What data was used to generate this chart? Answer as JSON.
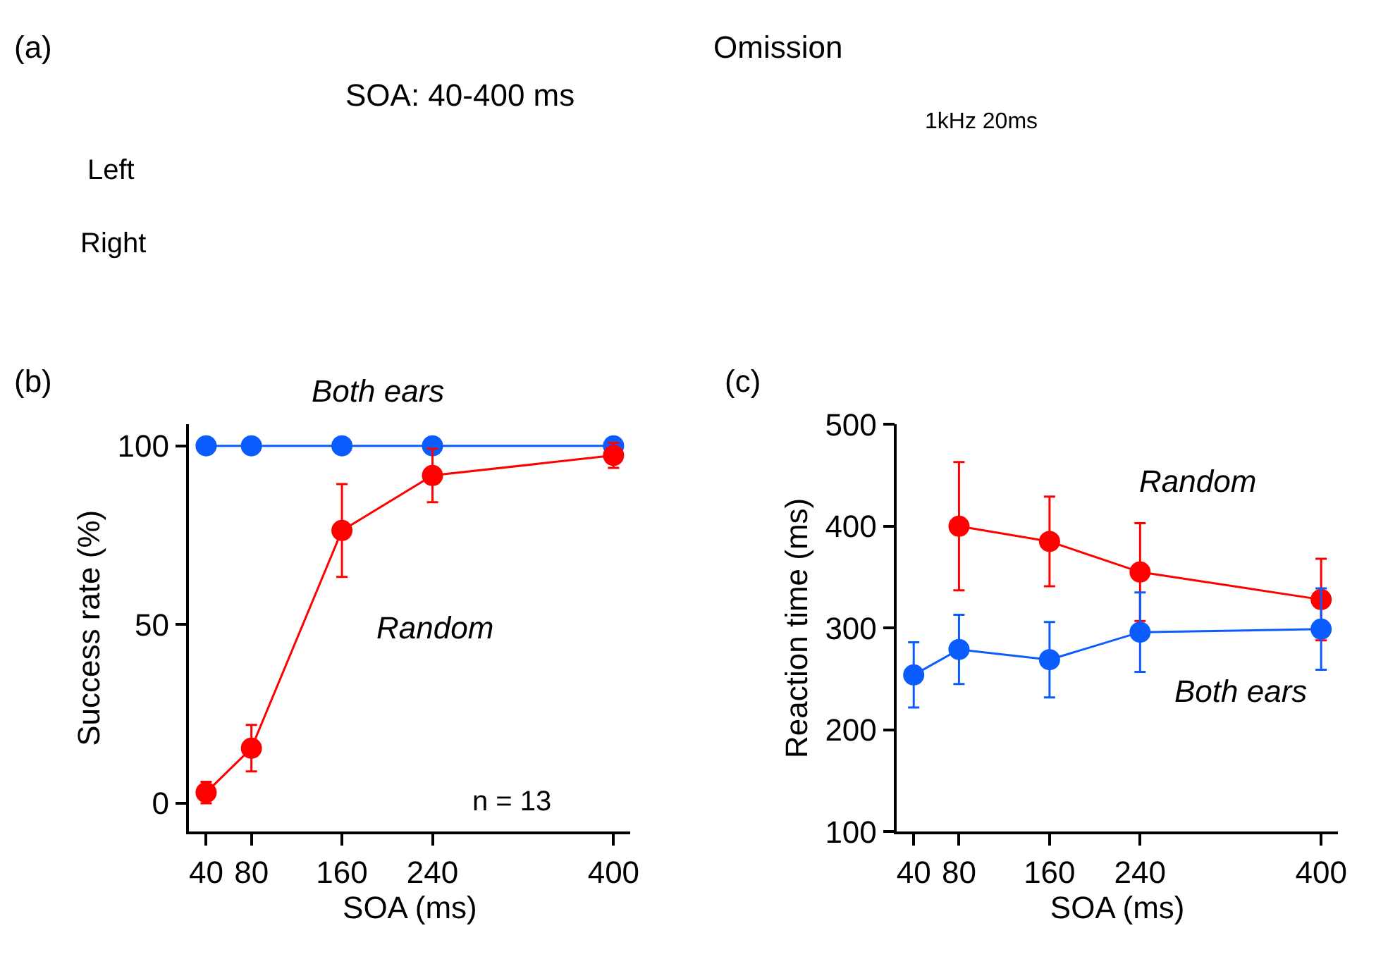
{
  "chart_data": [
    {
      "type": "other",
      "title": "(a)",
      "annotations": [
        "SOA: 40-400 ms",
        "Omission",
        "1kHz 20ms",
        "Left",
        "Right"
      ]
    },
    {
      "type": "line",
      "title": "(b)",
      "xlabel": "SOA (ms)",
      "ylabel": "Success rate (%)",
      "x": [
        40,
        80,
        160,
        240,
        400
      ],
      "xlim": [
        25,
        415
      ],
      "xticks": [
        40,
        80,
        160,
        240,
        400
      ],
      "ylim": [
        -8,
        106
      ],
      "yticks": [
        0,
        50,
        100
      ],
      "marker": "circle",
      "annotations": [
        "n = 13"
      ],
      "series": [
        {
          "name": "Both ears",
          "color": "#0a5cff",
          "values": [
            100,
            100,
            100,
            100,
            100
          ]
        },
        {
          "name": "Random",
          "color": "#ff0000",
          "values": [
            3,
            15.4,
            76.3,
            91.7,
            97.3
          ],
          "errors": [
            3,
            6.5,
            13,
            7.5,
            3.5
          ]
        }
      ]
    },
    {
      "type": "line",
      "title": "(c)",
      "xlabel": "SOA (ms)",
      "ylabel": "Reaction time (ms)",
      "x": [
        40,
        80,
        160,
        240,
        400
      ],
      "xlim": [
        25,
        415
      ],
      "xticks": [
        40,
        80,
        160,
        240,
        400
      ],
      "ylim": [
        100,
        500
      ],
      "yticks": [
        100,
        200,
        300,
        400,
        500
      ],
      "marker": "circle",
      "series": [
        {
          "name": "Random",
          "color": "#ff0000",
          "values": [
            null,
            400,
            385,
            355,
            328
          ],
          "errors": [
            null,
            63,
            44,
            48,
            40
          ]
        },
        {
          "name": "Both ears",
          "color": "#0a5cff",
          "values": [
            254,
            279,
            269,
            296,
            299
          ],
          "errors": [
            32,
            34,
            37,
            39,
            40
          ]
        }
      ]
    }
  ]
}
